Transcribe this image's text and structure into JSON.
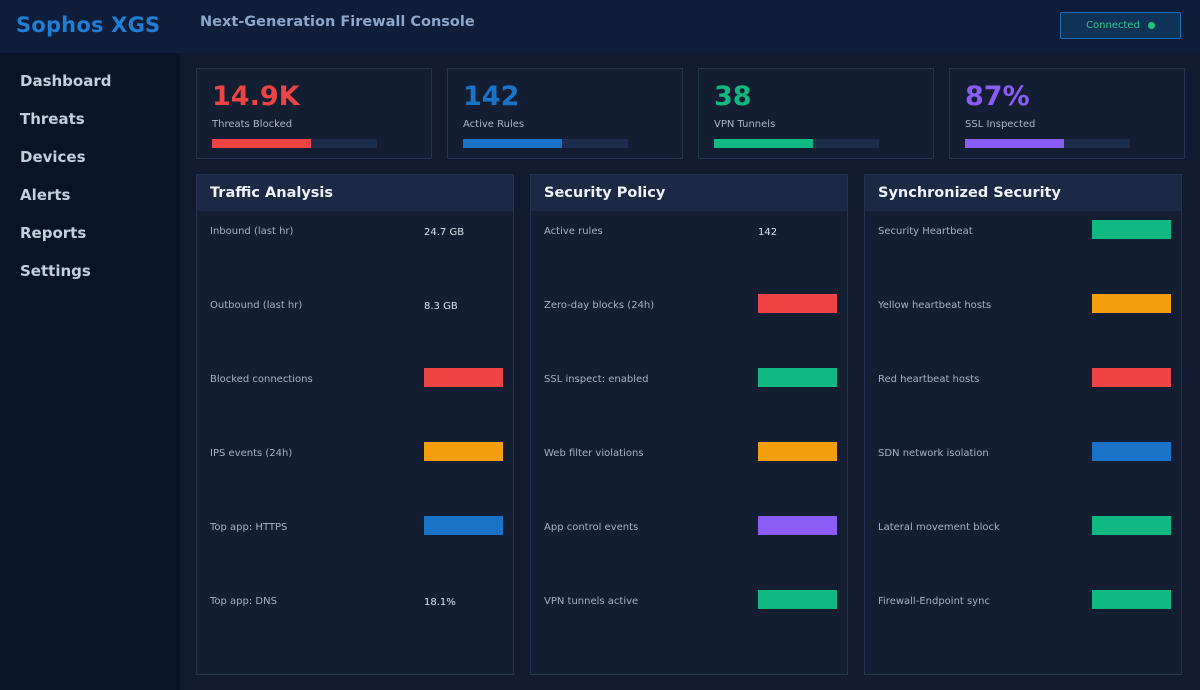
{
  "header": {
    "brand": "Sophos XGS",
    "title": "Next-Generation Firewall Console",
    "status": "Connected",
    "status_color": "#22c27f"
  },
  "sidebar": {
    "items": [
      {
        "label": "Dashboard",
        "active": true
      },
      {
        "label": "Threats",
        "active": false
      },
      {
        "label": "Devices",
        "active": false
      },
      {
        "label": "Alerts",
        "active": false
      },
      {
        "label": "Reports",
        "active": false
      },
      {
        "label": "Settings",
        "active": false
      }
    ]
  },
  "stats": [
    {
      "value": "14.9K",
      "label": "Threats Blocked",
      "color": "#ef4444",
      "progress": 0.6
    },
    {
      "value": "142",
      "label": "Active Rules",
      "color": "#1a73c7",
      "progress": 0.6
    },
    {
      "value": "38",
      "label": "VPN Tunnels",
      "color": "#10b981",
      "progress": 0.6
    },
    {
      "value": "87%",
      "label": "SSL Inspected",
      "color": "#8b5cf6",
      "progress": 0.6
    }
  ],
  "panels": [
    {
      "title": "Traffic Analysis",
      "rows": [
        {
          "label": "Inbound (last hr)",
          "value": "24.7 GB",
          "color": null
        },
        {
          "label": "Outbound (last hr)",
          "value": "8.3 GB",
          "color": null
        },
        {
          "label": "Blocked connections",
          "value": null,
          "color": "#ef4444"
        },
        {
          "label": "IPS events (24h)",
          "value": null,
          "color": "#f59e0b"
        },
        {
          "label": "Top app: HTTPS",
          "value": null,
          "color": "#1a73c7"
        },
        {
          "label": "Top app: DNS",
          "value": "18.1%",
          "color": null
        }
      ]
    },
    {
      "title": "Security Policy",
      "rows": [
        {
          "label": "Active rules",
          "value": "142",
          "color": null
        },
        {
          "label": "Zero-day blocks (24h)",
          "value": null,
          "color": "#ef4444"
        },
        {
          "label": "SSL inspect: enabled",
          "value": null,
          "color": "#10b981"
        },
        {
          "label": "Web filter violations",
          "value": null,
          "color": "#f59e0b"
        },
        {
          "label": "App control events",
          "value": null,
          "color": "#8b5cf6"
        },
        {
          "label": "VPN tunnels active",
          "value": null,
          "color": "#10b981"
        }
      ]
    },
    {
      "title": "Synchronized Security",
      "rows": [
        {
          "label": "Security Heartbeat",
          "value": null,
          "color": "#10b981"
        },
        {
          "label": "Yellow heartbeat hosts",
          "value": null,
          "color": "#f59e0b"
        },
        {
          "label": "Red heartbeat hosts",
          "value": null,
          "color": "#ef4444"
        },
        {
          "label": "SDN network isolation",
          "value": null,
          "color": "#1a73c7"
        },
        {
          "label": "Lateral movement block",
          "value": null,
          "color": "#10b981"
        },
        {
          "label": "Firewall-Endpoint sync",
          "value": null,
          "color": "#10b981"
        }
      ]
    }
  ]
}
